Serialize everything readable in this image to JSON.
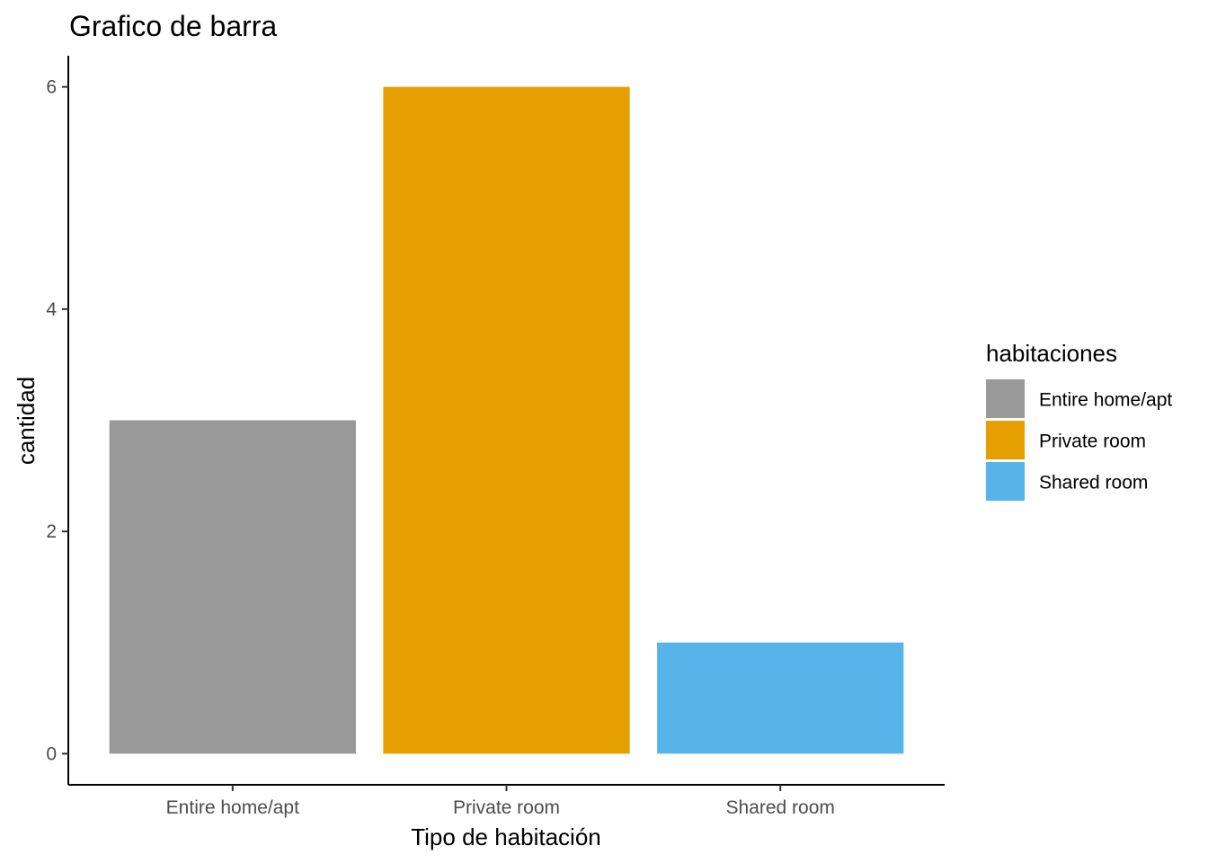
{
  "chart_data": {
    "type": "bar",
    "title": "Grafico de barra",
    "xlabel": "Tipo de habitación",
    "ylabel": "cantidad",
    "categories": [
      "Entire home/apt",
      "Private room",
      "Shared room"
    ],
    "values": [
      3,
      6,
      1
    ],
    "colors": [
      "#999999",
      "#E69F00",
      "#56B4E9"
    ],
    "ylim": [
      -0.28,
      6.28
    ],
    "yticks": [
      0,
      2,
      4,
      6
    ],
    "ytick_labels": [
      "0",
      "2",
      "4",
      "6"
    ],
    "grid": false,
    "legend": {
      "title": "habitaciones",
      "placement": "right",
      "entries": [
        "Entire home/apt",
        "Private room",
        "Shared room"
      ]
    }
  }
}
